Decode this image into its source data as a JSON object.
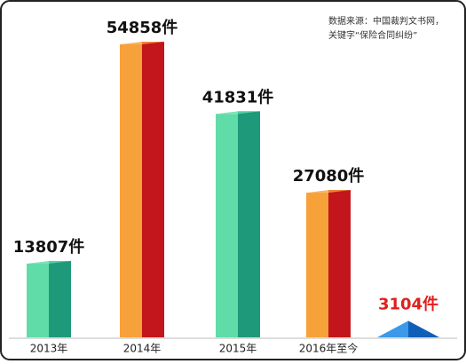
{
  "chart_data": {
    "type": "bar",
    "note": [
      "数据来源：中国裁判文书网，",
      "关键字“保险合同纠纷”"
    ],
    "categories": [
      "2013年",
      "2014年",
      "2015年",
      "2016年至今",
      null
    ],
    "values": [
      13807,
      54858,
      41831,
      27080,
      3104
    ],
    "value_labels": [
      "13807件",
      "54858件",
      "41831件",
      "27080件",
      "3104件"
    ],
    "colors": [
      "#5fdca8",
      "#f7a13a",
      "#5fdca8",
      "#f7a13a",
      "#3a9ae8"
    ],
    "side_colors": [
      "#1e9a7a",
      "#c3161c",
      "#1e9a7a",
      "#c3161c",
      "#0f5fb8"
    ],
    "label_colors": [
      "#111111",
      "#111111",
      "#111111",
      "#111111",
      "#e0201c"
    ],
    "shapes": [
      "bar",
      "bar",
      "bar",
      "bar",
      "pyramid"
    ]
  }
}
